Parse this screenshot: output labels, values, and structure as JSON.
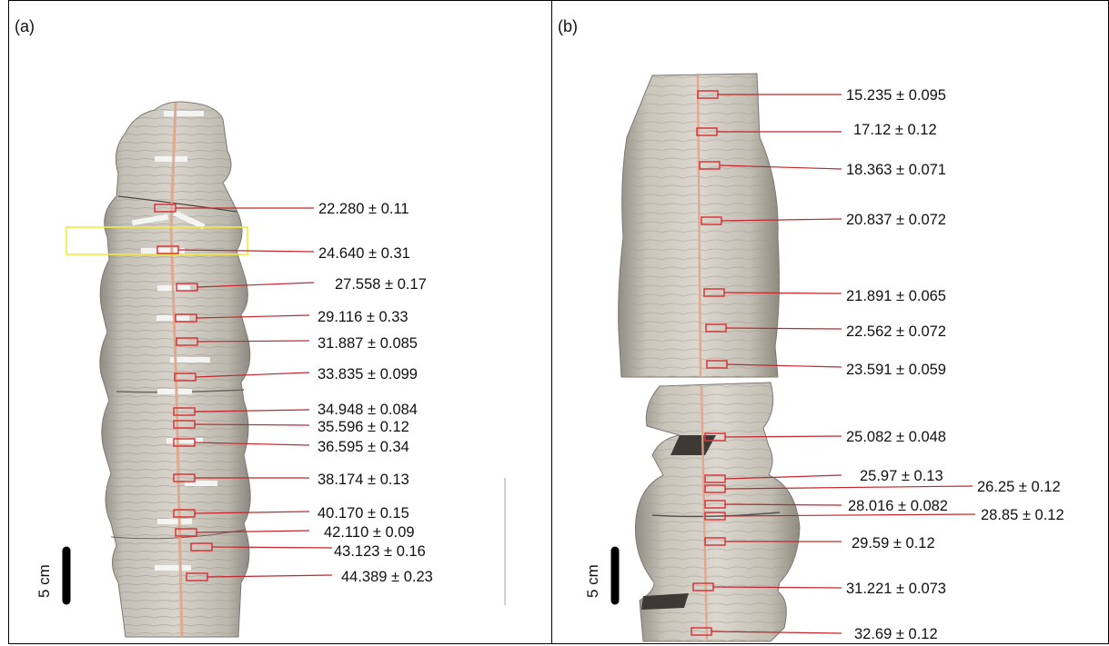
{
  "panels": [
    {
      "label": "(a)",
      "scale_bar": "5 cm",
      "ages": [
        "22.280 ± 0.11",
        "24.640 ± 0.31",
        "27.558 ± 0.17",
        "29.116  ± 0.33",
        "31.887 ± 0.085",
        "33.835 ±  0.099",
        "34.948 ± 0.084",
        "35.596 ± 0.12",
        "36.595 ± 0.34",
        "38.174 ± 0.13",
        "40.170 ± 0.15",
        "42.110 ± 0.09",
        "43.123 ± 0.16",
        "44.389 ± 0.23"
      ]
    },
    {
      "label": "(b)",
      "scale_bar": "5 cm",
      "ages": [
        "15.235 ± 0.095",
        "17.12 ± 0.12",
        "18.363 ± 0.071",
        "20.837 ± 0.072",
        "21.891 ± 0.065",
        "22.562 ± 0.072",
        "23.591 ± 0.059",
        "25.082 ± 0.048",
        "25.97 ± 0.13",
        "26.25 ± 0.12",
        "28.016 ± 0.082",
        "28.85 ± 0.12",
        "29.59 ± 0.12",
        "31.221 ± 0.073",
        "32.69 ± 0.12"
      ]
    }
  ],
  "colors": {
    "sample_box": "#d9363a",
    "leader_line": "#c2272d",
    "highlight_box": "#f3e93a",
    "scale_bar": "#000000",
    "stalagmite": "#c9c5bb"
  }
}
